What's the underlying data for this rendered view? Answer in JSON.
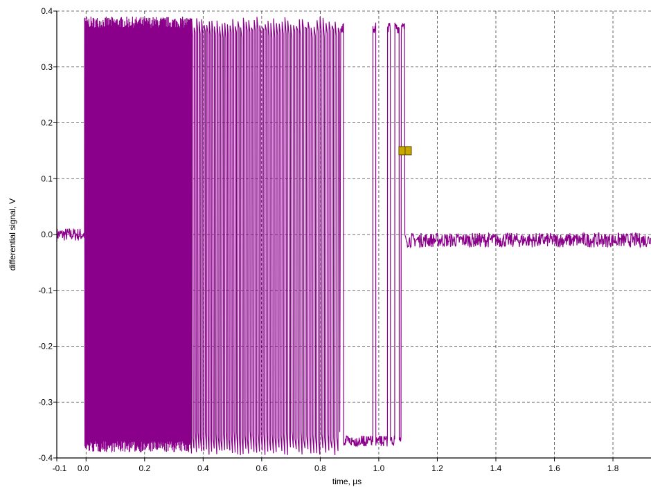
{
  "chart_data": {
    "type": "line",
    "title": "",
    "xlabel": "time, µs",
    "ylabel": "differential signal, V",
    "xlim": [
      -0.1,
      1.93
    ],
    "ylim": [
      -0.4,
      0.4
    ],
    "x_ticks": [
      -0.1,
      0.0,
      0.2,
      0.4,
      0.6,
      0.8,
      1.0,
      1.2,
      1.4,
      1.6,
      1.8
    ],
    "x_tick_labels": [
      "-0.1",
      "0.0",
      "0.2",
      "0.4",
      "0.6",
      "0.8",
      "1.0",
      "1.2",
      "1.4",
      "1.6",
      "1.8"
    ],
    "y_ticks": [
      -0.4,
      -0.3,
      -0.2,
      -0.1,
      0.0,
      0.1,
      0.2,
      0.3,
      0.4
    ],
    "y_tick_labels": [
      "-0.4",
      "-0.3",
      "-0.2",
      "-0.1",
      "0.0",
      "0.1",
      "0.2",
      "0.3",
      "0.4"
    ],
    "grid": true,
    "line_color": "#8b008b",
    "marker_color": "#c8a800",
    "marker": {
      "x": 1.09,
      "y": 0.15
    },
    "series": [
      {
        "description_segments": [
          {
            "x_start": -0.1,
            "x_end": -0.005,
            "level": 0.0,
            "noise": 0.012
          },
          {
            "x_start": -0.005,
            "x_end": 0.36,
            "pattern": "dense_oscillation",
            "amplitude": 0.38
          },
          {
            "x_start": 0.36,
            "x_end": 0.87,
            "pattern": "pulse_train",
            "amplitude": 0.38
          },
          {
            "x_start": 0.87,
            "x_end": 1.09,
            "pattern": "slow_pulses",
            "amplitude": 0.38
          },
          {
            "x_start": 1.09,
            "x_end": 1.93,
            "level": -0.01,
            "noise": 0.012
          }
        ]
      }
    ]
  }
}
